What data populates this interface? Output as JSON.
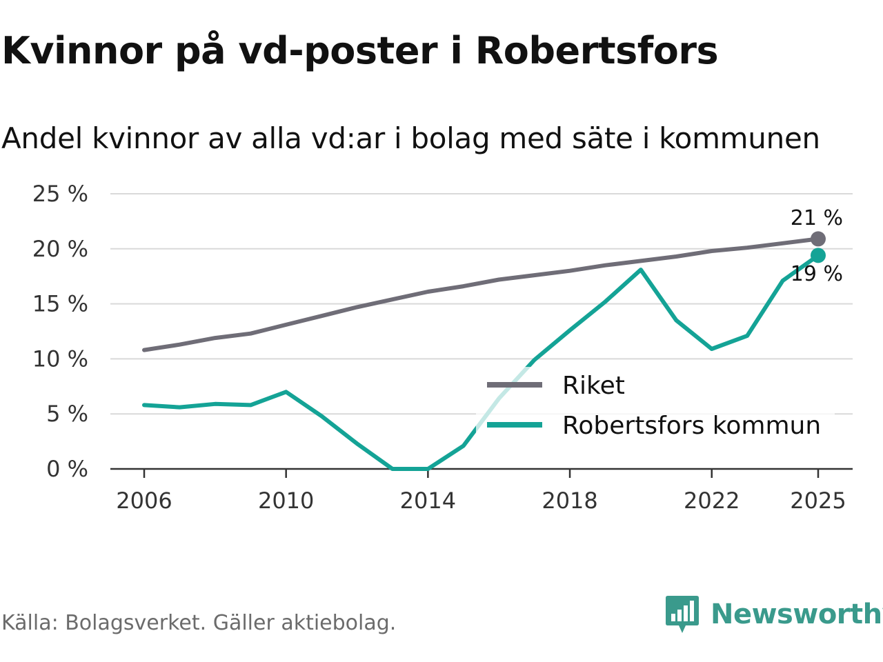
{
  "header": {
    "title": "Kvinnor på vd-poster i Robertsfors",
    "subtitle": "Andel kvinnor av alla vd:ar i bolag med säte i kommunen"
  },
  "footer": {
    "source": "Källa: Bolagsverket. Gäller aktiebolag.",
    "brand": "Newsworthy"
  },
  "colors": {
    "riket": "#6f6d77",
    "kommun": "#14a396",
    "grid": "#d9d9d9",
    "axis": "#333333",
    "brand": "#3a9a8c"
  },
  "chart_data": {
    "type": "line",
    "title": "Kvinnor på vd-poster i Robertsfors",
    "subtitle": "Andel kvinnor av alla vd:ar i bolag med säte i kommunen",
    "xlabel": "",
    "ylabel": "",
    "ylim": [
      0,
      25
    ],
    "xlim": [
      2006,
      2025
    ],
    "yticks": [
      0,
      5,
      10,
      15,
      20,
      25
    ],
    "ytick_labels": [
      "0 %",
      "5 %",
      "10 %",
      "15 %",
      "20 %",
      "25 %"
    ],
    "xticks": [
      2006,
      2010,
      2014,
      2018,
      2022,
      2025
    ],
    "xtick_labels": [
      "2006",
      "2010",
      "2014",
      "2018",
      "2022",
      "2025"
    ],
    "x": [
      2006,
      2007,
      2008,
      2009,
      2010,
      2011,
      2012,
      2013,
      2014,
      2015,
      2016,
      2017,
      2018,
      2019,
      2020,
      2021,
      2022,
      2023,
      2024,
      2025
    ],
    "series": [
      {
        "name": "Riket",
        "color": "#6f6d77",
        "values": [
          10.8,
          11.3,
          11.9,
          12.3,
          13.1,
          13.9,
          14.7,
          15.4,
          16.1,
          16.6,
          17.2,
          17.6,
          18.0,
          18.5,
          18.9,
          19.3,
          19.8,
          20.1,
          20.5,
          20.9
        ],
        "end_label": "21 %"
      },
      {
        "name": "Robertsfors kommun",
        "color": "#14a396",
        "values": [
          5.8,
          5.6,
          5.9,
          5.8,
          7.0,
          4.8,
          2.3,
          0.0,
          0.0,
          2.1,
          6.4,
          9.9,
          12.6,
          15.2,
          18.1,
          13.5,
          10.9,
          12.1,
          17.1,
          19.4
        ],
        "end_label": "19 %"
      }
    ],
    "legend": {
      "position": "right",
      "entries": [
        "Riket",
        "Robertsfors kommun"
      ]
    },
    "grid": true
  }
}
